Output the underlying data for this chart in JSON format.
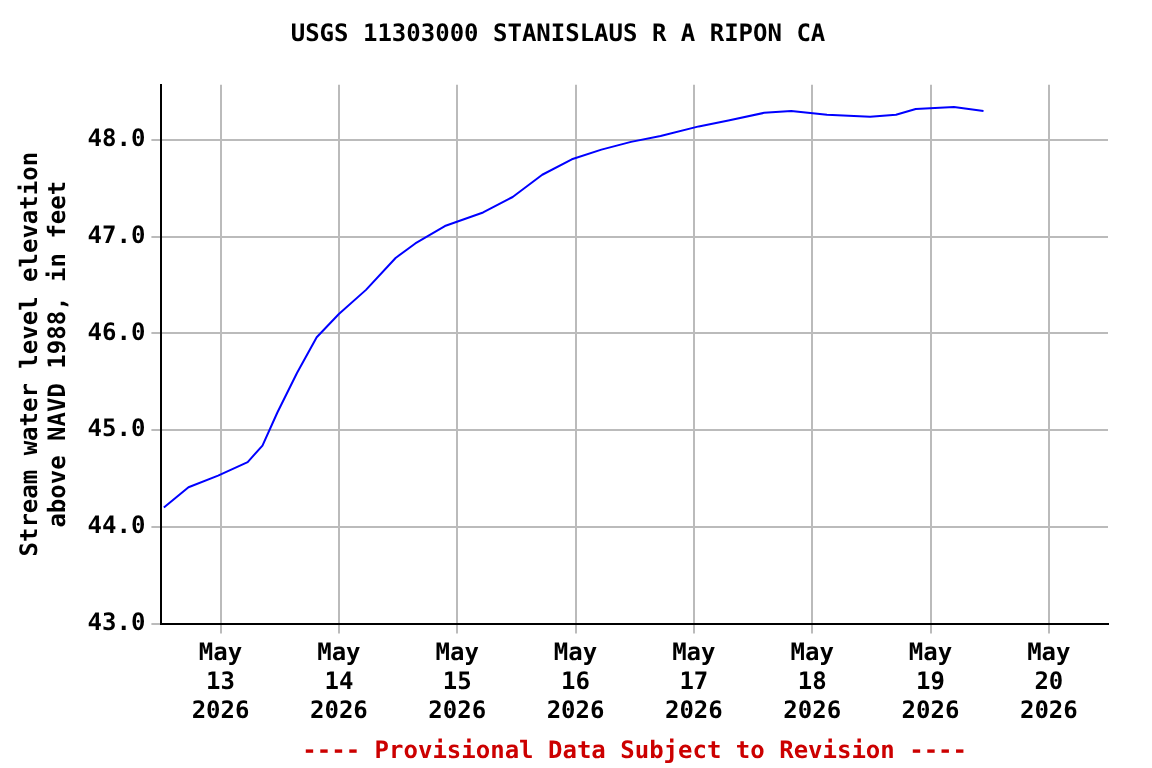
{
  "chart_data": {
    "type": "line",
    "title": "USGS 11303000 STANISLAUS R A RIPON CA",
    "ylabel": "Stream water level elevation above NAVD 1988, in feet",
    "annotations": [
      "---- Provisional Data Subject to Revision ----"
    ],
    "x": [
      "2026-05-12T12:30",
      "2026-05-12T17:30",
      "2026-05-12T23:30",
      "2026-05-13T05:30",
      "2026-05-13T08:30",
      "2026-05-13T11:30",
      "2026-05-13T15:30",
      "2026-05-13T19:30",
      "2026-05-14T00:00",
      "2026-05-14T05:30",
      "2026-05-14T11:30",
      "2026-05-14T15:30",
      "2026-05-14T21:30",
      "2026-05-15T05:15",
      "2026-05-15T11:15",
      "2026-05-15T17:15",
      "2026-05-15T23:15",
      "2026-05-16T05:15",
      "2026-05-16T11:15",
      "2026-05-16T17:15",
      "2026-05-17T01:00",
      "2026-05-17T07:00",
      "2026-05-17T14:15",
      "2026-05-17T19:45",
      "2026-05-18T03:00",
      "2026-05-18T11:45",
      "2026-05-18T17:00",
      "2026-05-18T21:00",
      "2026-05-19T04:45",
      "2026-05-19T10:45"
    ],
    "series": [
      {
        "color": "#0000ff",
        "values": [
          44.2,
          44.41,
          44.53,
          44.67,
          44.84,
          45.18,
          45.59,
          45.96,
          46.2,
          46.45,
          46.78,
          46.93,
          47.11,
          47.25,
          47.41,
          47.64,
          47.8,
          47.9,
          47.98,
          48.04,
          48.14,
          48.2,
          48.28,
          48.3,
          48.26,
          48.24,
          48.26,
          48.32,
          48.34,
          48.3
        ]
      }
    ],
    "xlim": [
      "2026-05-12T12:00",
      "2026-05-20T12:00"
    ],
    "xticks": [
      {
        "value": "2026-05-13",
        "label": "May\n13\n2026"
      },
      {
        "value": "2026-05-14",
        "label": "May\n14\n2026"
      },
      {
        "value": "2026-05-15",
        "label": "May\n15\n2026"
      },
      {
        "value": "2026-05-16",
        "label": "May\n16\n2026"
      },
      {
        "value": "2026-05-17",
        "label": "May\n17\n2026"
      },
      {
        "value": "2026-05-18",
        "label": "May\n18\n2026"
      },
      {
        "value": "2026-05-19",
        "label": "May\n19\n2026"
      },
      {
        "value": "2026-05-20",
        "label": "May\n20\n2026"
      }
    ],
    "ylim": [
      43,
      48.57
    ],
    "yticks": [
      {
        "value": 43,
        "label": "43.0"
      },
      {
        "value": 44,
        "label": "44.0"
      },
      {
        "value": 45,
        "label": "45.0"
      },
      {
        "value": 46,
        "label": "46.0"
      },
      {
        "value": 47,
        "label": "47.0"
      },
      {
        "value": 48,
        "label": "48.0"
      }
    ],
    "grid": true,
    "legend": false,
    "marker": "none",
    "line_style": "solid"
  }
}
